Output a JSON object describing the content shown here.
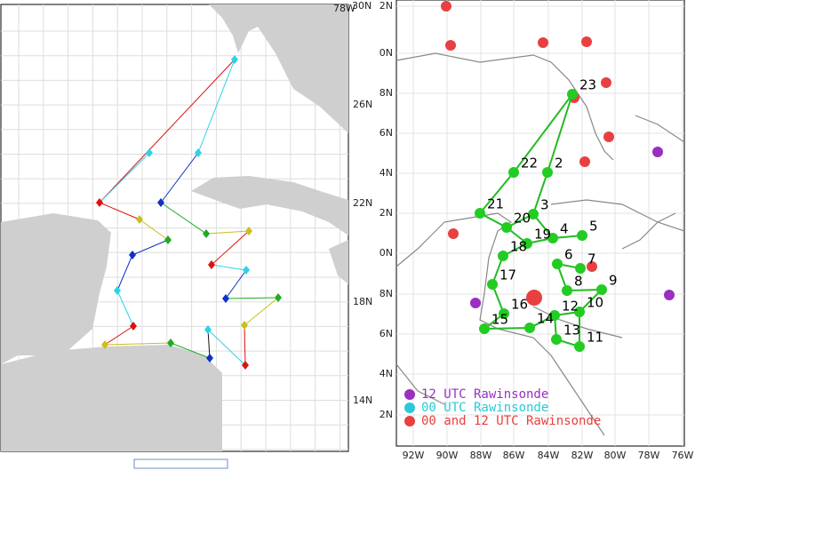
{
  "left_map": {
    "corner_label": "78W",
    "lat_labels": [
      "30N",
      "26N",
      "22N",
      "18N",
      "14N"
    ]
  },
  "right_map": {
    "lat_labels": [
      "2N",
      "0N",
      "8N",
      "6N",
      "4N",
      "2N",
      "0N",
      "8N",
      "6N",
      "4N",
      "2N"
    ],
    "lon_labels": [
      "92W",
      "90W",
      "88W",
      "86W",
      "84W",
      "82W",
      "80W",
      "78W",
      "76W"
    ],
    "point_labels": [
      "23",
      "22",
      "2",
      "21",
      "3",
      "20",
      "4",
      "5",
      "19",
      "18",
      "6",
      "7",
      "17",
      "8",
      "9",
      "16",
      "10",
      "12",
      "15",
      "14",
      "13",
      "11"
    ],
    "legend": [
      "12 UTC Rawinsonde",
      "00 UTC Rawinsonde",
      "00 and 12 UTC Rawinsonde"
    ]
  }
}
